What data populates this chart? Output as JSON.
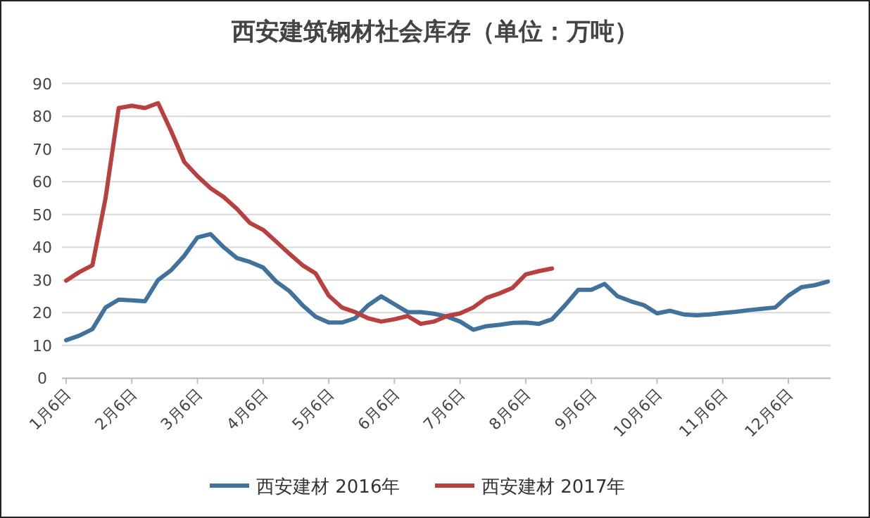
{
  "chart_data": {
    "type": "line",
    "title": "西安建筑钢材社会库存（单位：万吨）",
    "categories": [
      "1月6日",
      null,
      null,
      null,
      null,
      "2月6日",
      null,
      null,
      null,
      null,
      "3月6日",
      null,
      null,
      null,
      null,
      "4月6日",
      null,
      null,
      null,
      null,
      "5月6日",
      null,
      null,
      null,
      null,
      "6月6日",
      null,
      null,
      null,
      null,
      "7月6日",
      null,
      null,
      null,
      null,
      "8月6日",
      null,
      null,
      null,
      null,
      "9月6日",
      null,
      null,
      null,
      null,
      "10月6日",
      null,
      null,
      null,
      null,
      "11月6日",
      null,
      null,
      null,
      null,
      "12月6日",
      null,
      null,
      null
    ],
    "series": [
      {
        "name": "西安建材 2016年",
        "color": "#41729c",
        "values": [
          11.6,
          13,
          15,
          21.6,
          24,
          23.8,
          23.5,
          30,
          33,
          37.4,
          43,
          44,
          40,
          36.7,
          35.5,
          33.8,
          29.5,
          26.6,
          22.3,
          18.8,
          17,
          17,
          18.3,
          22.3,
          25,
          22.6,
          20.2,
          20.2,
          19.7,
          18.8,
          17.3,
          14.8,
          15.9,
          16.3,
          16.9,
          17,
          16.6,
          18,
          22.3,
          27,
          27,
          28.8,
          25,
          23.5,
          22.3,
          19.8,
          20.6,
          19.5,
          19.2,
          19.5,
          19.9,
          20.3,
          20.8,
          21.2,
          21.6,
          25.2,
          27.8,
          28.4,
          29.5
        ]
      },
      {
        "name": "西安建材 2017年",
        "color": "#b8413f",
        "values": [
          29.8,
          32.4,
          34.5,
          55,
          82.5,
          83.2,
          82.5,
          84,
          75.4,
          66,
          61.7,
          58,
          55.3,
          51.7,
          47.4,
          45.3,
          41.7,
          38,
          34.5,
          32,
          25.2,
          21.6,
          20.2,
          18.3,
          17.3,
          18,
          19,
          16.6,
          17.3,
          19,
          19.8,
          21.6,
          24.5,
          25.9,
          27.6,
          31.7,
          32.7,
          33.5,
          null,
          null,
          null,
          null,
          null,
          null,
          null,
          null,
          null,
          null,
          null,
          null,
          null,
          null,
          null,
          null,
          null,
          null,
          null,
          null,
          null
        ]
      }
    ],
    "ylim": [
      0,
      90
    ],
    "yticks": [
      0,
      10,
      20,
      30,
      40,
      50,
      60,
      70,
      80,
      90
    ],
    "grid": "y",
    "legend": "bottom"
  }
}
